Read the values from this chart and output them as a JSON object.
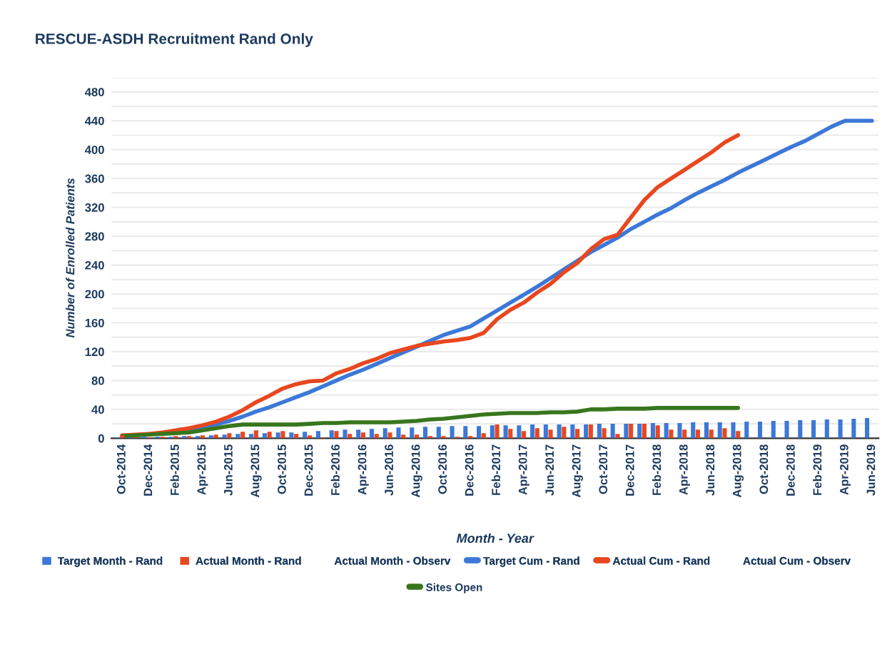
{
  "chart_data": {
    "type": "bar",
    "title": "RESCUE-ASDH Recruitment Rand Only",
    "xlabel": "Month - Year",
    "ylabel": "Number of Enrolled Patients",
    "categories": [
      "Oct-2014",
      null,
      "Dec-2014",
      null,
      "Feb-2015",
      null,
      "Apr-2015",
      null,
      "Jun-2015",
      null,
      "Aug-2015",
      null,
      "Oct-2015",
      null,
      "Dec-2015",
      null,
      "Feb-2016",
      null,
      "Apr-2016",
      null,
      "Jun-2016",
      null,
      "Aug-2016",
      null,
      "Oct-2016",
      null,
      "Dec-2016",
      null,
      "Feb-2017",
      null,
      "Apr-2017",
      null,
      "Jun-2017",
      null,
      "Aug-2017",
      null,
      "Oct-2017",
      null,
      "Dec-2017",
      null,
      "Feb-2018",
      null,
      "Apr-2018",
      null,
      "Jun-2018",
      null,
      "Aug-2018",
      null,
      "Oct-2018",
      null,
      "Dec-2018",
      null,
      "Feb-2019",
      null,
      "Apr-2019",
      null,
      "Jun-2019"
    ],
    "ylim": [
      0,
      500
    ],
    "yticks": [
      0,
      {
        "value": 20,
        "label": null
      },
      40,
      {
        "value": 60,
        "label": null
      },
      80,
      {
        "value": 100,
        "label": null
      },
      120,
      {
        "value": 140,
        "label": null
      },
      160,
      {
        "value": 180,
        "label": null
      },
      200,
      {
        "value": 220,
        "label": null
      },
      240,
      {
        "value": 260,
        "label": null
      },
      280,
      {
        "value": 300,
        "label": null
      },
      320,
      {
        "value": 340,
        "label": null
      },
      360,
      {
        "value": 380,
        "label": null
      },
      400,
      {
        "value": 420,
        "label": null
      },
      440,
      {
        "value": 460,
        "label": null
      },
      480,
      {
        "value": 500,
        "label": null
      }
    ],
    "grid": "y",
    "legend": "bottom",
    "series": [
      {
        "name": "Target Month - Rand",
        "color": "#3c78d8",
        "values": [
          1,
          1,
          2,
          2,
          2,
          3,
          3,
          4,
          5,
          6,
          6,
          7,
          8,
          8,
          9,
          10,
          11,
          12,
          12,
          13,
          14,
          15,
          15,
          16,
          16,
          17,
          17,
          17,
          18,
          18,
          18,
          19,
          19,
          19,
          19,
          19,
          20,
          20,
          20,
          20,
          21,
          21,
          21,
          22,
          22,
          22,
          22,
          23,
          23,
          24,
          24,
          25,
          25,
          26,
          26,
          27,
          28
        ]
      },
      {
        "name": "Actual Month - Rand",
        "color": "#e8471f",
        "values": [
          4,
          1,
          1,
          2,
          3,
          3,
          4,
          5,
          7,
          9,
          11,
          9,
          10,
          6,
          4,
          1,
          10,
          6,
          8,
          6,
          8,
          5,
          5,
          3,
          3,
          2,
          3,
          7,
          19,
          13,
          10,
          14,
          12,
          16,
          13,
          19,
          14,
          6,
          20,
          20,
          18,
          12,
          12,
          12,
          12,
          14,
          10,
          null,
          null,
          null,
          null,
          null,
          null,
          null,
          null,
          null,
          null
        ]
      },
      {
        "name": "Actual Month - Observ",
        "values": [
          null,
          null,
          null,
          null,
          null,
          null,
          null,
          null,
          null,
          null,
          null,
          null,
          null,
          null,
          null,
          null,
          null,
          null,
          null,
          null,
          null,
          null,
          null,
          null,
          null,
          null,
          null,
          null,
          null,
          null,
          null,
          null,
          null,
          null,
          null,
          null,
          null,
          null,
          null,
          null,
          null,
          null,
          null,
          null,
          null,
          null,
          null,
          null,
          null,
          null,
          null,
          null,
          null,
          null,
          null,
          null,
          null
        ]
      },
      {
        "name": "Target Cum - Rand",
        "type": "line",
        "color": "#3c78d8",
        "values": [
          null,
          null,
          null,
          null,
          9,
          12,
          15,
          19,
          24,
          30,
          37,
          43,
          50,
          57,
          64,
          72,
          80,
          88,
          95,
          103,
          111,
          119,
          127,
          135,
          143,
          149,
          155,
          166,
          177,
          188,
          199,
          210,
          222,
          234,
          246,
          258,
          268,
          278,
          290,
          300,
          310,
          319,
          330,
          340,
          349,
          358,
          368,
          377,
          386,
          395,
          404,
          412,
          422,
          432,
          440,
          440,
          440
        ]
      },
      {
        "name": "Actual Cum - Rand",
        "type": "line",
        "color": "#e8471f",
        "values": [
          4,
          5,
          6,
          8,
          11,
          14,
          18,
          23,
          30,
          39,
          50,
          59,
          69,
          75,
          79,
          80,
          90,
          96,
          104,
          110,
          118,
          123,
          128,
          131,
          134,
          136,
          139,
          146,
          165,
          178,
          188,
          202,
          214,
          230,
          243,
          262,
          276,
          282,
          306,
          330,
          348,
          360,
          372,
          384,
          396,
          410,
          420,
          null,
          null,
          null,
          null,
          null,
          null,
          null,
          null,
          null,
          null
        ]
      },
      {
        "name": "Actual Cum - Observ",
        "type": "line",
        "values": [
          null,
          null,
          null,
          null,
          null,
          null,
          null,
          null,
          null,
          null,
          null,
          null,
          null,
          null,
          null,
          null,
          null,
          null,
          null,
          null,
          null,
          null,
          null,
          null,
          null,
          null,
          null,
          null,
          null,
          null,
          null,
          null,
          null,
          null,
          null,
          null,
          null,
          null,
          null,
          null,
          null,
          null,
          null,
          null,
          null,
          null,
          null,
          null,
          null,
          null,
          null,
          null,
          null,
          null,
          null,
          null,
          null
        ]
      },
      {
        "name": "Sites Open",
        "type": "line",
        "color": "#38761d",
        "values": [
          3,
          4,
          5,
          6,
          7,
          8,
          11,
          14,
          17,
          19,
          19,
          19,
          19,
          19,
          20,
          21,
          21,
          22,
          22,
          22,
          22,
          23,
          24,
          26,
          27,
          29,
          31,
          33,
          34,
          35,
          35,
          35,
          36,
          36,
          37,
          40,
          40,
          41,
          41,
          41,
          42,
          42,
          42,
          42,
          42,
          42,
          42,
          null,
          null,
          null,
          null,
          null,
          null,
          null,
          null,
          null,
          null
        ]
      }
    ]
  }
}
